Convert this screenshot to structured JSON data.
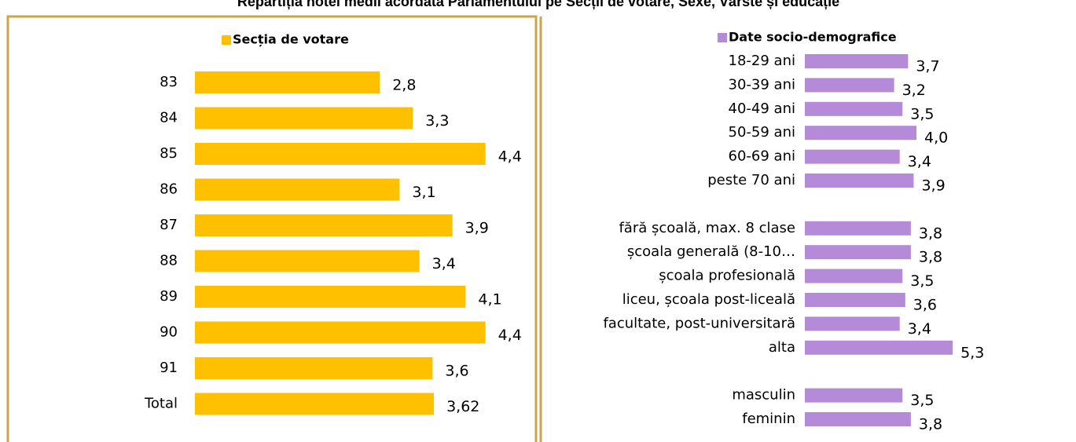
{
  "title": "Repartiția notei medii acordată Parlamentului pe Secții de votare, Sexe, Vârste și educație",
  "chart_data": [
    {
      "type": "bar",
      "orientation": "horizontal",
      "categories": [
        "83",
        "84",
        "85",
        "86",
        "87",
        "88",
        "89",
        "90",
        "91",
        "Total"
      ],
      "series": [
        {
          "name": "Secția de votare",
          "color": "#ffc000",
          "values": [
            2.8,
            3.3,
            4.4,
            3.1,
            3.9,
            3.4,
            4.1,
            4.4,
            3.6,
            3.62
          ],
          "value_labels": [
            "2,8",
            "3,3",
            "4,4",
            "3,1",
            "3,9",
            "3,4",
            "4,1",
            "4,4",
            "3,6",
            "3,62"
          ]
        }
      ]
    },
    {
      "type": "bar",
      "orientation": "horizontal",
      "categories": [
        "18-29 ani",
        "30-39 ani",
        "40-49 ani",
        "50-59 ani",
        "60-69 ani",
        "peste 70 ani",
        null,
        "fără școală, max. 8 clase",
        "școala generală (8-10…",
        "școala profesională",
        "liceu, școala post-liceală",
        "facultate, post-universitară",
        "alta",
        null,
        "masculin",
        "feminin"
      ],
      "series": [
        {
          "name": "Date socio-demografice",
          "color": "#b48ad9",
          "values": [
            3.7,
            3.2,
            3.5,
            4.0,
            3.4,
            3.9,
            null,
            3.8,
            3.8,
            3.5,
            3.6,
            3.4,
            5.3,
            null,
            3.5,
            3.8
          ],
          "value_labels": [
            "3,7",
            "3,2",
            "3,5",
            "4,0",
            "3,4",
            "3,9",
            null,
            "3,8",
            "3,8",
            "3,5",
            "3,6",
            "3,4",
            "5,3",
            null,
            "3,5",
            "3,8"
          ]
        }
      ]
    }
  ]
}
